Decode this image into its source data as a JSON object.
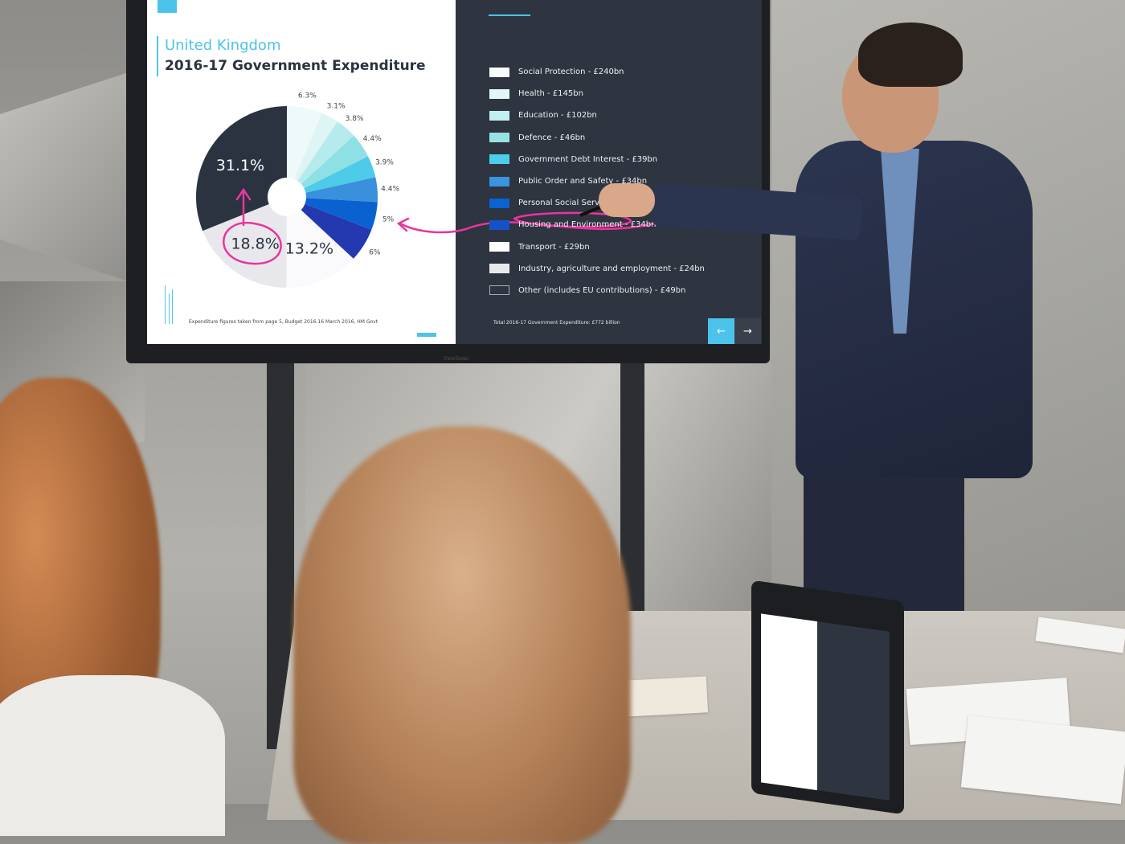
{
  "slide": {
    "title_country": "United Kingdom",
    "title_main": "2016-17 Government Expenditure",
    "source_note": "Expenditure figures taken from page 5, Budget 2016.16 March 2016, HM Govt",
    "total": "Total 2016-17 Government Expenditure: £772 billion",
    "nav_prev": "←",
    "nav_next": "→",
    "monitor_brand": "ViewSonic",
    "legend": [
      {
        "label": "Social Protection - £240bn",
        "color": "#f7fbfb"
      },
      {
        "label": "Health - £145bn",
        "color": "#e3f6f7"
      },
      {
        "label": "Education - £102bn",
        "color": "#c1eef0"
      },
      {
        "label": "Defence - £46bn",
        "color": "#98e2e6"
      },
      {
        "label": "Government Debt Interest - £39bn",
        "color": "#4ccdeb"
      },
      {
        "label": "Public Order and Safety - £34bn",
        "color": "#3a94e0"
      },
      {
        "label": "Personal Social Serv",
        "color": "#0b63cf"
      },
      {
        "label": "Housing and Environment - £34bn",
        "color": "#1552c8"
      },
      {
        "label": "Transport - £29bn",
        "color": "#ffffff"
      },
      {
        "label": "Industry, agriculture and employment - £24bn",
        "color": "#e9e9ec"
      },
      {
        "label": "Other (includes EU contributions) - £49bn",
        "color": "#2e3440"
      }
    ]
  },
  "chart_data": {
    "type": "pie",
    "title": "2016-17 Government Expenditure",
    "donut": true,
    "start": "top, clockwise",
    "slices": [
      {
        "label": "6.3%",
        "value": 6.3,
        "color": "#eef9f9"
      },
      {
        "label": "3.1%",
        "value": 3.1,
        "color": "#dff4f5"
      },
      {
        "label": "3.8%",
        "value": 3.8,
        "color": "#b6ebed"
      },
      {
        "label": "4.4%",
        "value": 4.4,
        "color": "#8fe0e4"
      },
      {
        "label": "3.9%",
        "value": 3.9,
        "color": "#4dcbe8"
      },
      {
        "label": "4.4%",
        "value": 4.4,
        "color": "#3a90dd"
      },
      {
        "label": "5%",
        "value": 5.0,
        "color": "#0a62d0"
      },
      {
        "label": "6%",
        "value": 6.0,
        "color": "#2438b0"
      },
      {
        "label": "13.2%",
        "value": 13.2,
        "color": "#fafafc",
        "inside": true
      },
      {
        "label": "18.8%",
        "value": 18.8,
        "color": "#e8e8ec",
        "inside": true
      },
      {
        "label": "31.1%",
        "value": 31.1,
        "color": "#2b3340",
        "inside": true
      }
    ],
    "annotation_color": "#e8359f"
  },
  "colors": {
    "accent": "#4cc3ea",
    "panel": "#2e3440",
    "ink": "#e8359f"
  }
}
